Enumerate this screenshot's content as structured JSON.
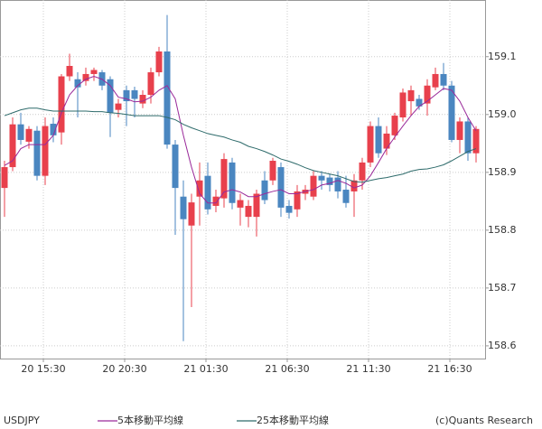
{
  "chart_data": {
    "type": "candlestick",
    "symbol": "USDJPY",
    "source": "(c)Quants Research",
    "categories": [
      null,
      null,
      null,
      null,
      null,
      "20 15:30",
      null,
      null,
      null,
      null,
      null,
      null,
      null,
      null,
      null,
      "20 20:30",
      null,
      null,
      null,
      null,
      null,
      null,
      null,
      null,
      null,
      "21 01:30",
      null,
      null,
      null,
      null,
      null,
      null,
      null,
      null,
      null,
      "21 06:30",
      null,
      null,
      null,
      null,
      null,
      null,
      null,
      null,
      null,
      "21 11:30",
      null,
      null,
      null,
      null,
      null,
      null,
      null,
      null,
      null,
      "21 16:30",
      null,
      null,
      null
    ],
    "open": [
      158.873,
      158.909,
      158.983,
      158.953,
      158.972,
      158.894,
      158.984,
      158.969,
      159.066,
      159.061,
      159.058,
      159.07,
      159.073,
      159.061,
      159.008,
      159.042,
      159.042,
      159.019,
      159.034,
      159.073,
      159.109,
      158.948,
      158.858,
      158.808,
      158.858,
      158.894,
      158.842,
      158.855,
      158.917,
      158.839,
      158.823,
      158.823,
      158.886,
      158.886,
      158.909,
      158.842,
      158.836,
      158.863,
      158.858,
      158.894,
      158.891,
      158.891,
      158.87,
      158.867,
      158.886,
      158.917,
      158.98,
      158.941,
      158.964,
      158.995,
      159.023,
      159.027,
      159.019,
      159.047,
      159.07,
      159.05,
      158.956,
      158.988,
      158.933
    ],
    "high": [
      158.92,
      158.995,
      159.003,
      158.98,
      158.98,
      158.995,
      158.995,
      159.07,
      159.105,
      159.073,
      159.081,
      159.081,
      159.077,
      159.066,
      159.027,
      159.05,
      159.048,
      159.042,
      159.081,
      159.117,
      159.172,
      158.956,
      158.886,
      158.863,
      158.917,
      158.917,
      158.87,
      158.933,
      158.925,
      158.863,
      158.852,
      158.87,
      158.902,
      158.925,
      158.917,
      158.852,
      158.878,
      158.878,
      158.902,
      158.902,
      158.898,
      158.902,
      158.894,
      158.897,
      158.925,
      158.988,
      158.995,
      158.98,
      159.003,
      159.045,
      159.05,
      159.034,
      159.061,
      159.081,
      159.089,
      159.058,
      158.995,
      158.995,
      158.98
    ],
    "low": [
      158.823,
      158.902,
      158.948,
      158.941,
      158.886,
      158.878,
      158.952,
      158.948,
      159.058,
      158.995,
      159.05,
      159.058,
      159.042,
      158.961,
      158.995,
      158.98,
      158.995,
      159.011,
      159.019,
      159.066,
      158.941,
      158.792,
      158.608,
      158.667,
      158.808,
      158.827,
      158.831,
      158.839,
      158.836,
      158.808,
      158.805,
      158.789,
      158.845,
      158.878,
      158.823,
      158.82,
      158.823,
      158.852,
      158.852,
      158.87,
      158.867,
      158.855,
      158.839,
      158.823,
      158.87,
      158.909,
      158.925,
      158.93,
      158.956,
      158.988,
      158.998,
      159.008,
      158.998,
      159.042,
      159.042,
      158.952,
      158.933,
      158.92,
      158.917
    ],
    "close": [
      158.909,
      158.983,
      158.956,
      158.975,
      158.894,
      158.98,
      158.964,
      159.066,
      159.084,
      159.047,
      159.07,
      159.077,
      159.05,
      159.003,
      159.019,
      159.023,
      159.027,
      159.034,
      159.073,
      159.109,
      158.948,
      158.873,
      158.819,
      158.848,
      158.886,
      158.836,
      158.858,
      158.923,
      158.847,
      158.852,
      158.842,
      158.863,
      158.852,
      158.92,
      158.839,
      158.83,
      158.867,
      158.87,
      158.894,
      158.886,
      158.878,
      158.867,
      158.847,
      158.886,
      158.917,
      158.98,
      158.933,
      158.967,
      158.998,
      159.038,
      159.042,
      159.014,
      159.05,
      159.07,
      159.05,
      158.956,
      158.988,
      158.933,
      158.975
    ],
    "up_color": "#e8404c",
    "down_color": "#4a86c0",
    "series": [
      {
        "name": "5本移動平均線",
        "color": "#9a2a9a",
        "values": [
          158.912,
          158.92,
          158.941,
          158.948,
          158.948,
          158.948,
          158.964,
          159.003,
          159.034,
          159.05,
          159.061,
          159.066,
          159.061,
          159.05,
          159.03,
          159.027,
          159.022,
          159.023,
          159.03,
          159.042,
          159.05,
          159.027,
          158.964,
          158.909,
          158.863,
          158.847,
          158.847,
          158.866,
          158.87,
          158.866,
          158.858,
          158.858,
          158.863,
          158.867,
          158.87,
          158.863,
          158.863,
          158.867,
          158.87,
          158.878,
          158.881,
          158.886,
          158.881,
          158.873,
          158.878,
          158.894,
          158.917,
          158.941,
          158.961,
          158.98,
          158.998,
          159.014,
          159.023,
          159.034,
          159.045,
          159.042,
          159.023,
          158.995,
          158.972
        ]
      },
      {
        "name": "25本移動平均線",
        "color": "#2e6b6b",
        "values": [
          158.998,
          159.003,
          159.008,
          159.011,
          159.011,
          159.008,
          159.006,
          159.006,
          159.006,
          159.006,
          159.006,
          159.005,
          159.005,
          159.003,
          159.002,
          159.0,
          158.998,
          158.998,
          158.998,
          158.998,
          158.995,
          158.991,
          158.983,
          158.977,
          158.972,
          158.967,
          158.964,
          158.961,
          158.956,
          158.952,
          158.945,
          158.941,
          158.936,
          158.93,
          158.923,
          158.919,
          158.914,
          158.908,
          158.903,
          158.9,
          158.897,
          158.894,
          158.889,
          158.884,
          158.883,
          158.886,
          158.889,
          158.891,
          158.894,
          158.897,
          158.902,
          158.905,
          158.906,
          158.909,
          158.913,
          158.92,
          158.928,
          158.936,
          158.941
        ]
      }
    ],
    "ylim": [
      158.578,
      159.198
    ],
    "yticks": [
      158.6,
      158.7,
      158.8,
      158.9,
      {
        "value": 159,
        "label": "159.0"
      },
      159.1
    ],
    "grid": true
  }
}
